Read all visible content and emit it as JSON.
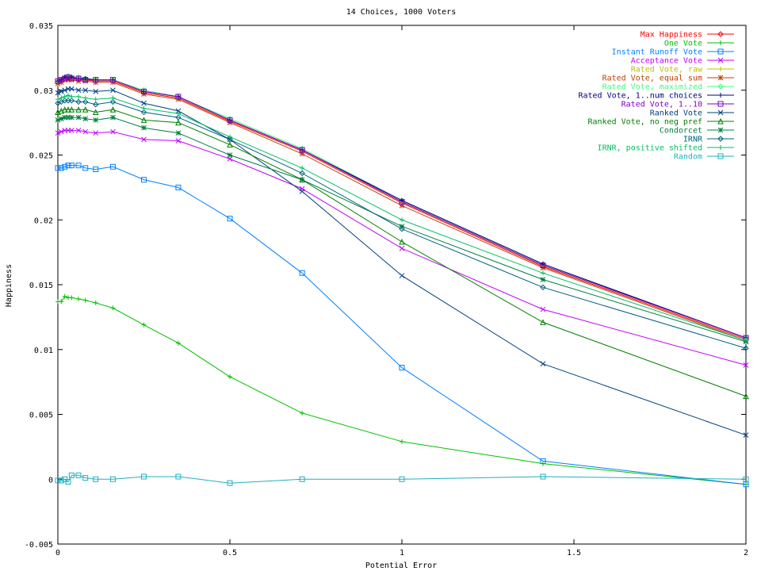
{
  "chart_data": {
    "type": "line",
    "title": "14 Choices, 1000 Voters",
    "xlabel": "Potential Error",
    "ylabel": "Happiness",
    "xlim": [
      0,
      2
    ],
    "ylim": [
      -0.005,
      0.035
    ],
    "x_ticks": [
      "0",
      "0.5",
      "1",
      "1.5",
      "2"
    ],
    "y_ticks": [
      "-0.005",
      "0",
      "0.005",
      "0.01",
      "0.015",
      "0.02",
      "0.025",
      "0.03",
      "0.035"
    ],
    "grid": false,
    "legend_position": "top-right",
    "x": [
      0,
      0.01,
      0.02,
      0.03,
      0.04,
      0.06,
      0.08,
      0.11,
      0.16,
      0.25,
      0.35,
      0.5,
      0.71,
      1.0,
      1.41,
      2.0
    ],
    "series": [
      {
        "name": "Max Happiness",
        "color": "#ff0000",
        "marker": "diamond",
        "values": [
          0.0306,
          0.0307,
          0.0309,
          0.0309,
          0.0309,
          0.0308,
          0.0308,
          0.0307,
          0.0307,
          0.0298,
          0.0294,
          0.0276,
          0.0253,
          0.0213,
          0.0164,
          0.0108
        ]
      },
      {
        "name": "One Vote",
        "color": "#00c000",
        "marker": "plus",
        "values": [
          0.0137,
          0.0137,
          0.0141,
          0.014,
          0.014,
          0.0139,
          0.0138,
          0.0136,
          0.0132,
          0.0119,
          0.0105,
          0.0079,
          0.0051,
          0.0029,
          0.0012,
          -0.0004
        ]
      },
      {
        "name": "Instant Runoff Vote",
        "color": "#0080ff",
        "marker": "square",
        "values": [
          0.024,
          0.024,
          0.0241,
          0.0242,
          0.0242,
          0.0242,
          0.024,
          0.0239,
          0.0241,
          0.0231,
          0.0225,
          0.0201,
          0.0159,
          0.0086,
          0.0014,
          -0.0004
        ]
      },
      {
        "name": "Acceptance Vote",
        "color": "#c000ff",
        "marker": "x",
        "values": [
          0.0267,
          0.0268,
          0.0269,
          0.0269,
          0.0269,
          0.0269,
          0.0268,
          0.0267,
          0.0268,
          0.0262,
          0.0261,
          0.0247,
          0.0224,
          0.0178,
          0.0131,
          0.0088
        ]
      },
      {
        "name": "Rated Vote, raw",
        "color": "#c0c000",
        "marker": "plus",
        "values": [
          0.0307,
          0.0308,
          0.031,
          0.031,
          0.031,
          0.0309,
          0.0309,
          0.0308,
          0.0308,
          0.0299,
          0.0295,
          0.0277,
          0.0254,
          0.0214,
          0.0165,
          0.0109
        ]
      },
      {
        "name": "Rated Vote, equal sum",
        "color": "#c04000",
        "marker": "star",
        "values": [
          0.0305,
          0.0306,
          0.0308,
          0.0308,
          0.0308,
          0.0307,
          0.0307,
          0.0306,
          0.0306,
          0.0297,
          0.0293,
          0.0275,
          0.0251,
          0.0211,
          0.0163,
          0.0107
        ]
      },
      {
        "name": "Rated Vote, maximized",
        "color": "#40ff80",
        "marker": "diamond",
        "values": [
          0.0307,
          0.0308,
          0.031,
          0.0311,
          0.031,
          0.031,
          0.0309,
          0.0308,
          0.0308,
          0.03,
          0.0295,
          0.0278,
          0.0255,
          0.0215,
          0.0166,
          0.0109
        ]
      },
      {
        "name": "Rated Vote, 1..num choices",
        "color": "#000080",
        "marker": "plus",
        "values": [
          0.0307,
          0.0308,
          0.031,
          0.031,
          0.031,
          0.0309,
          0.0309,
          0.0308,
          0.0308,
          0.0299,
          0.0295,
          0.0277,
          0.0254,
          0.0215,
          0.0166,
          0.0109
        ]
      },
      {
        "name": "Rated Vote, 1..10",
        "color": "#8000c0",
        "marker": "square",
        "values": [
          0.0307,
          0.0308,
          0.0309,
          0.031,
          0.0309,
          0.0309,
          0.0308,
          0.0308,
          0.0308,
          0.0299,
          0.0295,
          0.0277,
          0.0254,
          0.0214,
          0.0165,
          0.0109
        ]
      },
      {
        "name": "Ranked Vote",
        "color": "#004080",
        "marker": "x",
        "values": [
          0.0298,
          0.0299,
          0.03,
          0.0301,
          0.0301,
          0.03,
          0.03,
          0.0299,
          0.03,
          0.029,
          0.0284,
          0.0262,
          0.0222,
          0.0157,
          0.0089,
          0.0034
        ]
      },
      {
        "name": "Ranked Vote, no neg pref",
        "color": "#008000",
        "marker": "triangle",
        "values": [
          0.0283,
          0.0284,
          0.0285,
          0.0285,
          0.0285,
          0.0285,
          0.0285,
          0.0283,
          0.0285,
          0.0277,
          0.0275,
          0.0258,
          0.0231,
          0.0183,
          0.0121,
          0.0064
        ]
      },
      {
        "name": "Condorcet",
        "color": "#008040",
        "marker": "star",
        "values": [
          0.0277,
          0.0278,
          0.0279,
          0.0279,
          0.0279,
          0.0279,
          0.0278,
          0.0277,
          0.0279,
          0.0271,
          0.0267,
          0.025,
          0.0231,
          0.0195,
          0.0154,
          0.0106
        ]
      },
      {
        "name": "IRNR",
        "color": "#006080",
        "marker": "diamond",
        "values": [
          0.029,
          0.0291,
          0.0292,
          0.0292,
          0.0292,
          0.0291,
          0.0291,
          0.0289,
          0.0291,
          0.0283,
          0.0279,
          0.0262,
          0.0236,
          0.0193,
          0.0148,
          0.0101
        ]
      },
      {
        "name": "IRNR, positive shifted",
        "color": "#00c060",
        "marker": "plus",
        "values": [
          0.0293,
          0.0294,
          0.0295,
          0.0296,
          0.0295,
          0.0295,
          0.0294,
          0.0293,
          0.0294,
          0.0286,
          0.0282,
          0.0264,
          0.024,
          0.02,
          0.0159,
          0.0107
        ]
      },
      {
        "name": "Random",
        "color": "#20b0c0",
        "marker": "square",
        "values": [
          -0.0001,
          -0.0001,
          0.0,
          -0.0002,
          0.0003,
          0.0003,
          0.0001,
          0.0,
          0.0,
          0.0002,
          0.0002,
          -0.0003,
          0.0,
          0.0,
          0.0002,
          0.0
        ]
      }
    ]
  }
}
